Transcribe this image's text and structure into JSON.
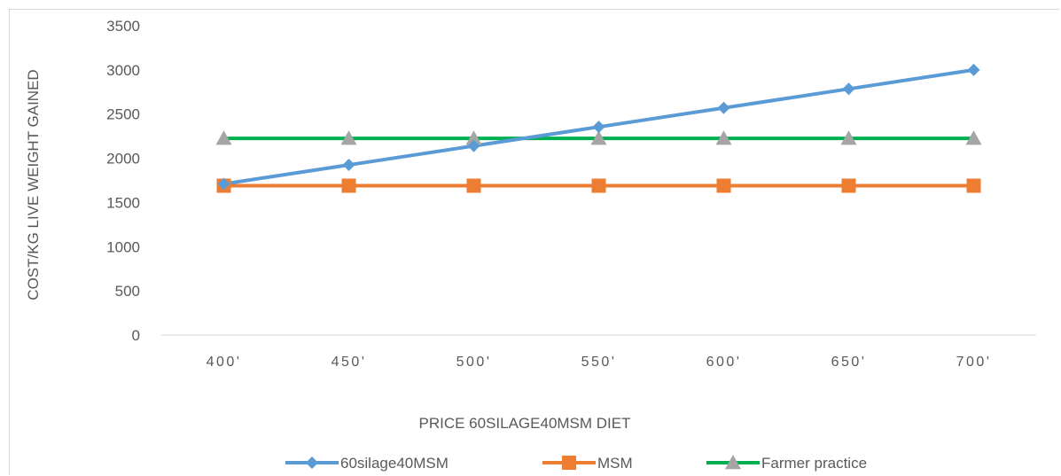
{
  "chart_data": {
    "type": "line",
    "title": "",
    "xlabel": "PRICE 60SILAGE40MSM DIET",
    "ylabel": "COST/KG LIVE WEIGHT GAINED",
    "categories": [
      "400'",
      "450'",
      "500'",
      "550'",
      "600'",
      "650'",
      "700'"
    ],
    "ylim": [
      0,
      3500
    ],
    "yticks": [
      0,
      500,
      1000,
      1500,
      2000,
      2500,
      3000,
      3500
    ],
    "grid": false,
    "legend_position": "bottom",
    "series": [
      {
        "name": "60silage40MSM",
        "color": "#5b9bd5",
        "marker": "diamond",
        "values": [
          1710,
          1925,
          2140,
          2355,
          2570,
          2785,
          3000
        ]
      },
      {
        "name": "MSM",
        "color": "#ed7d31",
        "marker": "square",
        "values": [
          1690,
          1690,
          1690,
          1690,
          1690,
          1690,
          1690
        ]
      },
      {
        "name": "Farmer practice",
        "color": "#00b050",
        "marker_color": "#a5a5a5",
        "marker": "triangle",
        "values": [
          2225,
          2225,
          2225,
          2225,
          2225,
          2225,
          2225
        ]
      }
    ]
  }
}
